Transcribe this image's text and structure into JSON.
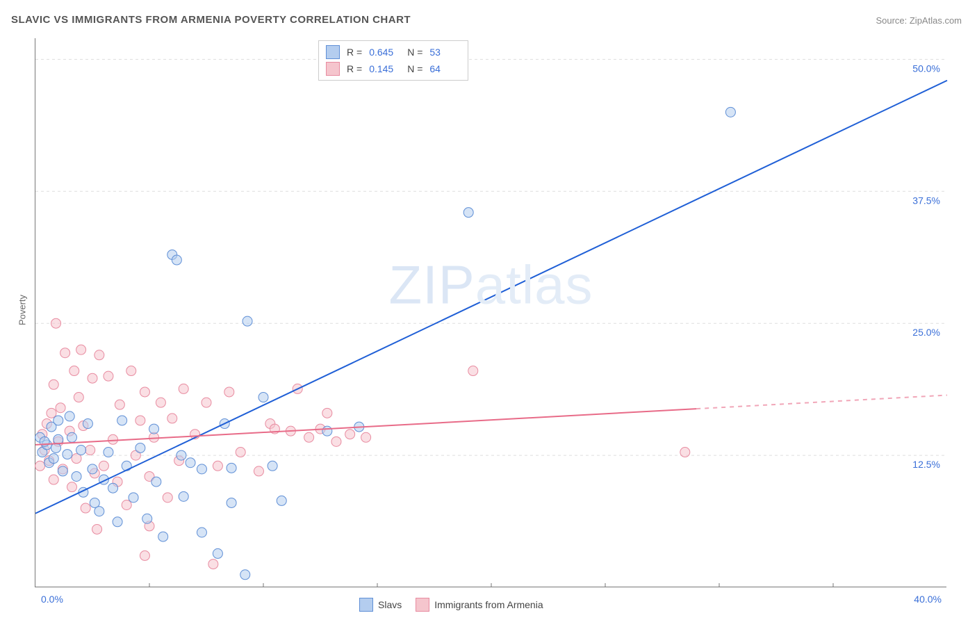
{
  "title": "SLAVIC VS IMMIGRANTS FROM ARMENIA POVERTY CORRELATION CHART",
  "source": "Source: ZipAtlas.com",
  "ylabel": "Poverty",
  "watermark": {
    "bold": "ZIP",
    "thin": "atlas"
  },
  "chart": {
    "type": "scatter-with-regression",
    "xlim": [
      0,
      40
    ],
    "ylim": [
      0,
      52
    ],
    "xticks": [
      0,
      40
    ],
    "xtick_labels": [
      "0.0%",
      "40.0%"
    ],
    "xminor_ticks": [
      5,
      10,
      15,
      20,
      25,
      30,
      35
    ],
    "ytick_values": [
      12.5,
      25,
      37.5,
      50
    ],
    "ytick_labels": [
      "12.5%",
      "25.0%",
      "37.5%",
      "50.0%"
    ],
    "grid_color": "#dddddd",
    "axis_color": "#777777",
    "tick_label_color": "#3a6fd8",
    "background_color": "#ffffff",
    "marker_radius": 7,
    "marker_opacity": 0.55,
    "marker_stroke_width": 1,
    "line_width": 2
  },
  "series": [
    {
      "name": "Slavs",
      "fill": "#b4cdef",
      "stroke": "#5f8fd6",
      "line_color": "#1f5fd6",
      "R": "0.645",
      "N": "53",
      "regression": {
        "x1": 0,
        "y1": 7,
        "x2": 40,
        "y2": 48,
        "dash_from_x": null
      },
      "points": [
        [
          0.2,
          14.2
        ],
        [
          0.3,
          12.8
        ],
        [
          0.5,
          13.5
        ],
        [
          0.6,
          11.8
        ],
        [
          0.7,
          15.2
        ],
        [
          0.8,
          12.2
        ],
        [
          1.0,
          14.0
        ],
        [
          1.2,
          11.0
        ],
        [
          1.4,
          12.6
        ],
        [
          1.5,
          16.2
        ],
        [
          1.8,
          10.5
        ],
        [
          2.0,
          13.0
        ],
        [
          2.1,
          9.0
        ],
        [
          2.3,
          15.5
        ],
        [
          2.5,
          11.2
        ],
        [
          2.6,
          8.0
        ],
        [
          2.8,
          7.2
        ],
        [
          3.0,
          10.2
        ],
        [
          3.2,
          12.8
        ],
        [
          3.4,
          9.4
        ],
        [
          3.6,
          6.2
        ],
        [
          3.8,
          15.8
        ],
        [
          4.0,
          11.5
        ],
        [
          4.3,
          8.5
        ],
        [
          4.6,
          13.2
        ],
        [
          4.9,
          6.5
        ],
        [
          5.2,
          15.0
        ],
        [
          5.3,
          10.0
        ],
        [
          5.6,
          4.8
        ],
        [
          6.0,
          31.5
        ],
        [
          6.2,
          31.0
        ],
        [
          6.4,
          12.5
        ],
        [
          6.5,
          8.6
        ],
        [
          6.8,
          11.8
        ],
        [
          7.3,
          5.2
        ],
        [
          7.3,
          11.2
        ],
        [
          8.0,
          3.2
        ],
        [
          8.3,
          15.5
        ],
        [
          8.6,
          11.3
        ],
        [
          8.6,
          8.0
        ],
        [
          9.2,
          1.2
        ],
        [
          9.3,
          25.2
        ],
        [
          10.0,
          18.0
        ],
        [
          10.4,
          11.5
        ],
        [
          10.8,
          8.2
        ],
        [
          12.8,
          14.8
        ],
        [
          14.2,
          15.2
        ],
        [
          19.0,
          35.5
        ],
        [
          30.5,
          45.0
        ],
        [
          0.4,
          13.8
        ],
        [
          1.0,
          15.8
        ],
        [
          0.9,
          13.2
        ],
        [
          1.6,
          14.2
        ]
      ]
    },
    {
      "name": "Immigrants from Armenia",
      "fill": "#f5c5cd",
      "stroke": "#e88ba0",
      "line_color": "#e86b88",
      "R": "0.145",
      "N": "64",
      "regression": {
        "x1": 0,
        "y1": 13.5,
        "x2": 40,
        "y2": 18.2,
        "dash_from_x": 29
      },
      "points": [
        [
          0.2,
          11.5
        ],
        [
          0.3,
          14.5
        ],
        [
          0.4,
          13.0
        ],
        [
          0.5,
          15.5
        ],
        [
          0.6,
          12.0
        ],
        [
          0.7,
          16.5
        ],
        [
          0.8,
          10.2
        ],
        [
          0.8,
          19.2
        ],
        [
          0.9,
          25.0
        ],
        [
          1.0,
          13.8
        ],
        [
          1.1,
          17.0
        ],
        [
          1.2,
          11.2
        ],
        [
          1.3,
          22.2
        ],
        [
          1.5,
          14.8
        ],
        [
          1.6,
          9.5
        ],
        [
          1.7,
          20.5
        ],
        [
          1.8,
          12.2
        ],
        [
          1.9,
          18.0
        ],
        [
          2.0,
          22.5
        ],
        [
          2.1,
          15.3
        ],
        [
          2.2,
          7.5
        ],
        [
          2.4,
          13.0
        ],
        [
          2.5,
          19.8
        ],
        [
          2.6,
          10.8
        ],
        [
          2.8,
          22.0
        ],
        [
          3.0,
          11.5
        ],
        [
          3.2,
          20.0
        ],
        [
          3.4,
          14.0
        ],
        [
          3.6,
          10.0
        ],
        [
          3.7,
          17.3
        ],
        [
          4.0,
          7.8
        ],
        [
          4.2,
          20.5
        ],
        [
          4.4,
          12.5
        ],
        [
          4.6,
          15.8
        ],
        [
          4.8,
          18.5
        ],
        [
          5.0,
          10.5
        ],
        [
          5.2,
          14.2
        ],
        [
          5.5,
          17.5
        ],
        [
          5.8,
          8.5
        ],
        [
          6.0,
          16.0
        ],
        [
          6.3,
          12.0
        ],
        [
          6.5,
          18.8
        ],
        [
          7.0,
          14.5
        ],
        [
          7.5,
          17.5
        ],
        [
          8.0,
          11.5
        ],
        [
          8.5,
          18.5
        ],
        [
          9.0,
          12.8
        ],
        [
          9.8,
          11.0
        ],
        [
          10.3,
          15.5
        ],
        [
          10.5,
          15.0
        ],
        [
          11.2,
          14.8
        ],
        [
          11.5,
          18.8
        ],
        [
          12.0,
          14.2
        ],
        [
          12.5,
          15.0
        ],
        [
          12.8,
          16.5
        ],
        [
          13.2,
          13.8
        ],
        [
          13.8,
          14.5
        ],
        [
          14.5,
          14.2
        ],
        [
          19.2,
          20.5
        ],
        [
          28.5,
          12.8
        ],
        [
          4.8,
          3.0
        ],
        [
          7.8,
          2.2
        ],
        [
          2.7,
          5.5
        ],
        [
          5.0,
          5.8
        ]
      ]
    }
  ],
  "legend_top": {
    "r_label": "R =",
    "n_label": "N ="
  },
  "legend_bottom": {
    "items": [
      "Slavs",
      "Immigrants from Armenia"
    ]
  }
}
